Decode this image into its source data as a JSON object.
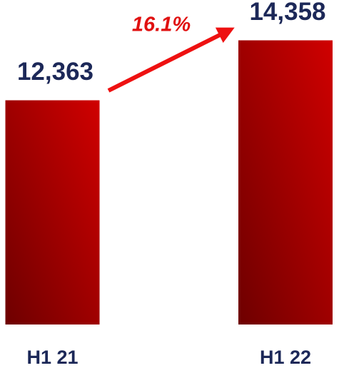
{
  "chart_data": {
    "type": "bar",
    "categories": [
      "H1 21",
      "H1 22"
    ],
    "values": [
      12363,
      14358
    ],
    "value_labels": [
      "12,363",
      "14,358"
    ],
    "annotation": "16.1%",
    "color": "#c80000",
    "ylim": [
      4900,
      15700
    ]
  }
}
